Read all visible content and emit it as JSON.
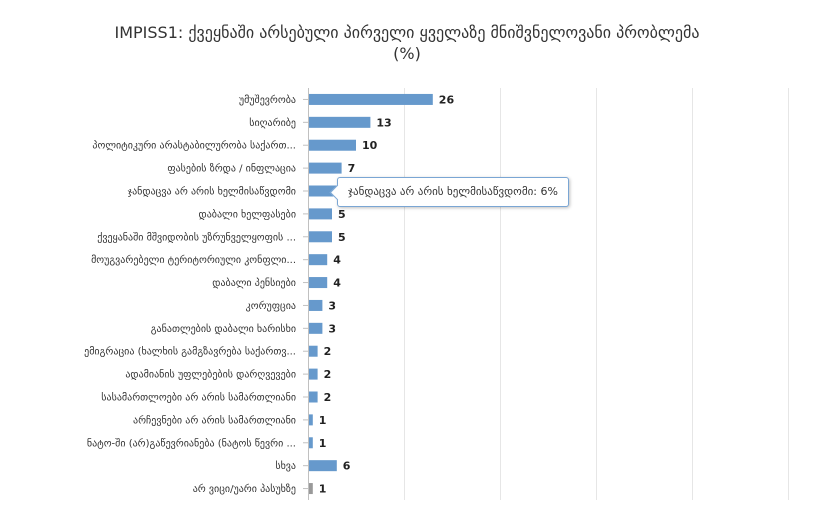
{
  "chart_data": {
    "type": "bar",
    "orientation": "horizontal",
    "title": "IMPISS1: ქვეყნაში არსებული პირველი ყველაზე მნიშვნელოვანი პრობლემა",
    "subtitle": "(%)",
    "categories": [
      "უმუშევრობა",
      "სიღარიბე",
      "პოლიტიკური არასტაბილურობა საქართ...",
      "ფასების ზრდა / ინფლაცია",
      "ჯანდაცვა არ არის ხელმისაწვდომი",
      "დაბალი ხელფასები",
      "ქვეყანაში მშვიდობის უზრუნველყოფის ...",
      "მოუგვარებელი ტერიტორიული კონფლი...",
      "დაბალი პენსიები",
      "კორუფცია",
      "განათლების დაბალი ხარისხი",
      "ემიგრაცია (ხალხის გამგზავრება საქართვ...",
      "ადამიანის უფლებების დარღვევები",
      "სასამართლოები არ არის სამართლიანი",
      "არჩევნები არ არის სამართლიანი",
      "ნატო-ში (არ)გაწევრიანება (ნატოს წევრი ...",
      "სხვა",
      "არ ვიცი/უარი პასუხზე"
    ],
    "values": [
      26,
      13,
      10,
      7,
      6,
      5,
      5,
      4,
      4,
      3,
      3,
      2,
      2,
      2,
      1,
      1,
      6,
      1
    ],
    "data_labels": [
      "26",
      "13",
      "10",
      "7",
      "",
      "5",
      "5",
      "4",
      "4",
      "3",
      "3",
      "2",
      "2",
      "2",
      "1",
      "1",
      "6",
      "1"
    ],
    "xlim": [
      0,
      100
    ],
    "grid": true,
    "legend": "none",
    "colors": {
      "bar": "#6699cc",
      "bar_last": "#999999",
      "grid": "#e6e6e6"
    }
  },
  "tooltip": {
    "text": "ჯანდაცვა არ არის ხელმისაწვდომი: 6%"
  }
}
